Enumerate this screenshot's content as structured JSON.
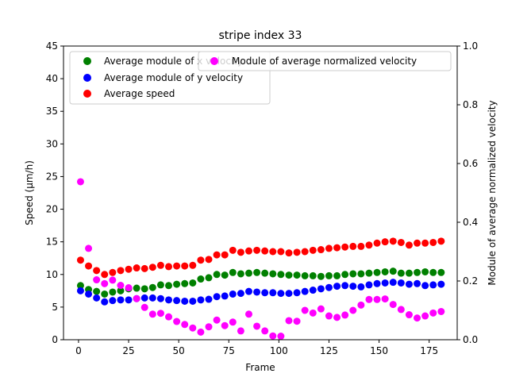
{
  "chart_data": {
    "type": "scatter",
    "title": "stripe index 33",
    "xlabel": "Frame",
    "ylabel": "Speed (μm/h)",
    "ylabel_right": "Module of average normalized velocity",
    "xlim": [
      -7.5,
      189
    ],
    "ylim": [
      0,
      45
    ],
    "ylim_right": [
      0,
      1.0
    ],
    "xticks": [
      0,
      25,
      50,
      75,
      100,
      125,
      150,
      175
    ],
    "yticks": [
      0,
      5,
      10,
      15,
      20,
      25,
      30,
      35,
      40,
      45
    ],
    "yticks_right": [
      "0.0",
      "0.2",
      "0.4",
      "0.6",
      "0.8",
      "1.0"
    ],
    "grid": false,
    "legend_left_placement": "top-left",
    "legend_right_placement": "top-right",
    "x": [
      1,
      5,
      9,
      13,
      17,
      21,
      25,
      29,
      33,
      37,
      41,
      45,
      49,
      53,
      57,
      61,
      65,
      69,
      73,
      77,
      81,
      85,
      89,
      93,
      97,
      101,
      105,
      109,
      113,
      117,
      121,
      125,
      129,
      133,
      137,
      141,
      145,
      149,
      153,
      157,
      161,
      165,
      169,
      173,
      177,
      181
    ],
    "series": [
      {
        "name": "Average module of x velocity",
        "axis": "left",
        "color": "#008000",
        "values": [
          8.3,
          7.7,
          7.4,
          7.0,
          7.3,
          7.5,
          7.8,
          7.9,
          7.8,
          8.0,
          8.4,
          8.3,
          8.5,
          8.6,
          8.7,
          9.3,
          9.5,
          10.0,
          9.9,
          10.3,
          10.1,
          10.2,
          10.3,
          10.2,
          10.1,
          10.0,
          9.9,
          9.9,
          9.8,
          9.8,
          9.7,
          9.8,
          9.8,
          10.0,
          10.1,
          10.1,
          10.2,
          10.3,
          10.4,
          10.5,
          10.2,
          10.2,
          10.3,
          10.4,
          10.3,
          10.3
        ]
      },
      {
        "name": "Average module of y velocity",
        "axis": "left",
        "color": "#0000ff",
        "values": [
          7.5,
          7.0,
          6.4,
          5.8,
          6.0,
          6.1,
          6.1,
          6.3,
          6.4,
          6.4,
          6.3,
          6.1,
          6.0,
          5.9,
          5.9,
          6.1,
          6.2,
          6.6,
          6.7,
          7.0,
          7.1,
          7.4,
          7.3,
          7.2,
          7.2,
          7.1,
          7.1,
          7.2,
          7.4,
          7.6,
          7.8,
          8.0,
          8.2,
          8.3,
          8.2,
          8.1,
          8.4,
          8.6,
          8.7,
          8.8,
          8.7,
          8.5,
          8.6,
          8.3,
          8.4,
          8.5
        ]
      },
      {
        "name": "Average speed",
        "axis": "left",
        "color": "#ff0000",
        "values": [
          12.2,
          11.3,
          10.6,
          10.0,
          10.3,
          10.6,
          10.8,
          11.0,
          10.9,
          11.1,
          11.4,
          11.2,
          11.3,
          11.3,
          11.4,
          12.2,
          12.3,
          13.0,
          13.0,
          13.7,
          13.4,
          13.6,
          13.7,
          13.6,
          13.5,
          13.5,
          13.3,
          13.4,
          13.5,
          13.7,
          13.8,
          14.0,
          14.1,
          14.2,
          14.3,
          14.3,
          14.5,
          14.8,
          15.0,
          15.1,
          14.9,
          14.5,
          14.8,
          14.8,
          14.9,
          15.1
        ]
      },
      {
        "name": "Module of average normalized velocity",
        "axis": "right",
        "color": "#ff00ff",
        "values": [
          0.538,
          0.311,
          0.204,
          0.191,
          0.203,
          0.185,
          0.177,
          0.14,
          0.11,
          0.087,
          0.09,
          0.078,
          0.062,
          0.052,
          0.04,
          0.026,
          0.044,
          0.067,
          0.048,
          0.06,
          0.03,
          0.087,
          0.046,
          0.03,
          0.013,
          0.012,
          0.065,
          0.063,
          0.1,
          0.091,
          0.105,
          0.081,
          0.076,
          0.084,
          0.1,
          0.118,
          0.137,
          0.137,
          0.139,
          0.12,
          0.103,
          0.085,
          0.074,
          0.081,
          0.091,
          0.096
        ]
      }
    ]
  }
}
